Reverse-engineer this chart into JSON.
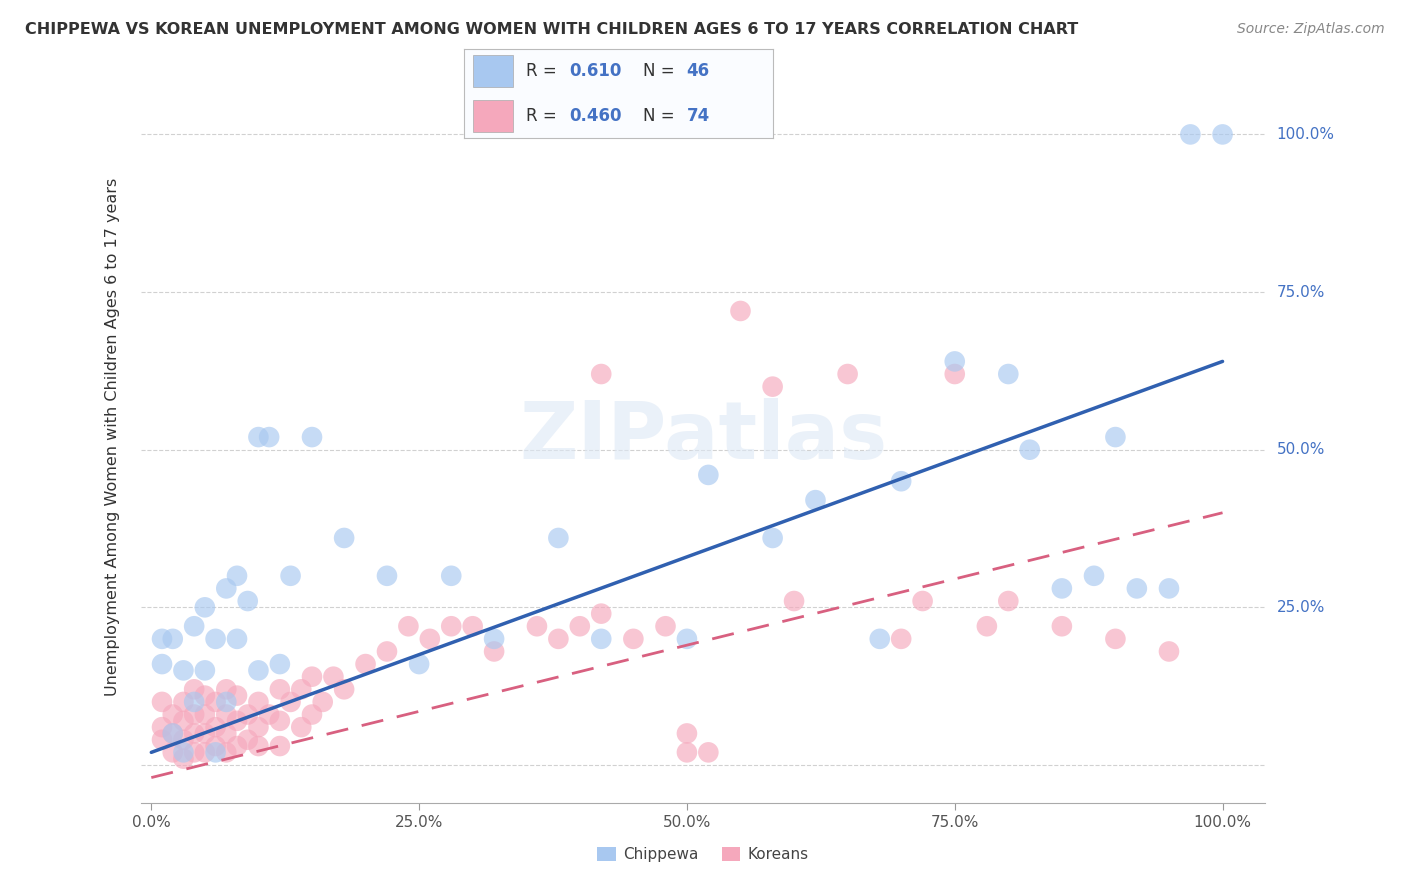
{
  "title": "CHIPPEWA VS KOREAN UNEMPLOYMENT AMONG WOMEN WITH CHILDREN AGES 6 TO 17 YEARS CORRELATION CHART",
  "source": "Source: ZipAtlas.com",
  "ylabel": "Unemployment Among Women with Children Ages 6 to 17 years",
  "r_chippewa": 0.61,
  "n_chippewa": 46,
  "r_korean": 0.46,
  "n_korean": 74,
  "chippewa_color": "#A8C8F0",
  "korean_color": "#F5A8BC",
  "chippewa_line_color": "#3060B0",
  "korean_line_color": "#D86080",
  "background_color": "#FFFFFF",
  "chippewa_x": [
    0.01,
    0.01,
    0.02,
    0.02,
    0.03,
    0.03,
    0.04,
    0.04,
    0.05,
    0.05,
    0.06,
    0.06,
    0.07,
    0.07,
    0.08,
    0.08,
    0.09,
    0.1,
    0.1,
    0.11,
    0.12,
    0.13,
    0.15,
    0.18,
    0.22,
    0.25,
    0.28,
    0.32,
    0.38,
    0.42,
    0.5,
    0.52,
    0.58,
    0.62,
    0.68,
    0.7,
    0.75,
    0.8,
    0.82,
    0.85,
    0.88,
    0.9,
    0.92,
    0.95,
    0.97,
    1.0
  ],
  "chippewa_y": [
    0.16,
    0.2,
    0.05,
    0.2,
    0.02,
    0.15,
    0.1,
    0.22,
    0.15,
    0.25,
    0.02,
    0.2,
    0.1,
    0.28,
    0.2,
    0.3,
    0.26,
    0.15,
    0.52,
    0.52,
    0.16,
    0.3,
    0.52,
    0.36,
    0.3,
    0.16,
    0.3,
    0.2,
    0.36,
    0.2,
    0.2,
    0.46,
    0.36,
    0.42,
    0.2,
    0.45,
    0.64,
    0.62,
    0.5,
    0.28,
    0.3,
    0.52,
    0.28,
    0.28,
    1.0,
    1.0
  ],
  "korean_x": [
    0.01,
    0.01,
    0.01,
    0.02,
    0.02,
    0.02,
    0.03,
    0.03,
    0.03,
    0.03,
    0.04,
    0.04,
    0.04,
    0.04,
    0.05,
    0.05,
    0.05,
    0.05,
    0.06,
    0.06,
    0.06,
    0.07,
    0.07,
    0.07,
    0.07,
    0.08,
    0.08,
    0.08,
    0.09,
    0.09,
    0.1,
    0.1,
    0.1,
    0.11,
    0.12,
    0.12,
    0.12,
    0.13,
    0.14,
    0.14,
    0.15,
    0.15,
    0.16,
    0.17,
    0.18,
    0.2,
    0.22,
    0.24,
    0.26,
    0.28,
    0.3,
    0.32,
    0.36,
    0.38,
    0.4,
    0.42,
    0.45,
    0.48,
    0.5,
    0.5,
    0.52,
    0.55,
    0.58,
    0.6,
    0.42,
    0.65,
    0.7,
    0.72,
    0.75,
    0.78,
    0.8,
    0.85,
    0.9,
    0.95
  ],
  "korean_y": [
    0.04,
    0.06,
    0.1,
    0.02,
    0.05,
    0.08,
    0.01,
    0.04,
    0.07,
    0.1,
    0.02,
    0.05,
    0.08,
    0.12,
    0.02,
    0.05,
    0.08,
    0.11,
    0.03,
    0.06,
    0.1,
    0.02,
    0.05,
    0.08,
    0.12,
    0.03,
    0.07,
    0.11,
    0.04,
    0.08,
    0.03,
    0.06,
    0.1,
    0.08,
    0.03,
    0.07,
    0.12,
    0.1,
    0.06,
    0.12,
    0.08,
    0.14,
    0.1,
    0.14,
    0.12,
    0.16,
    0.18,
    0.22,
    0.2,
    0.22,
    0.22,
    0.18,
    0.22,
    0.2,
    0.22,
    0.24,
    0.2,
    0.22,
    0.02,
    0.05,
    0.02,
    0.72,
    0.6,
    0.26,
    0.62,
    0.62,
    0.2,
    0.26,
    0.62,
    0.22,
    0.26,
    0.22,
    0.2,
    0.18
  ],
  "chippewa_line_x": [
    0.0,
    1.0
  ],
  "chippewa_line_y": [
    0.02,
    0.64
  ],
  "korean_line_x": [
    0.0,
    1.0
  ],
  "korean_line_y": [
    -0.02,
    0.4
  ],
  "xticks": [
    0.0,
    0.25,
    0.5,
    0.75,
    1.0
  ],
  "xtick_labels": [
    "0.0%",
    "25.0%",
    "50.0%",
    "75.0%",
    "100.0%"
  ],
  "ytick_positions": [
    0.0,
    0.25,
    0.5,
    0.75,
    1.0
  ],
  "ytick_labels": [
    "",
    "25.0%",
    "50.0%",
    "75.0%",
    "100.0%"
  ],
  "watermark_text": "ZIPatlas",
  "legend_text_color": "#4472C4",
  "chippewa_legend": "Chippewa",
  "korean_legend": "Koreans"
}
